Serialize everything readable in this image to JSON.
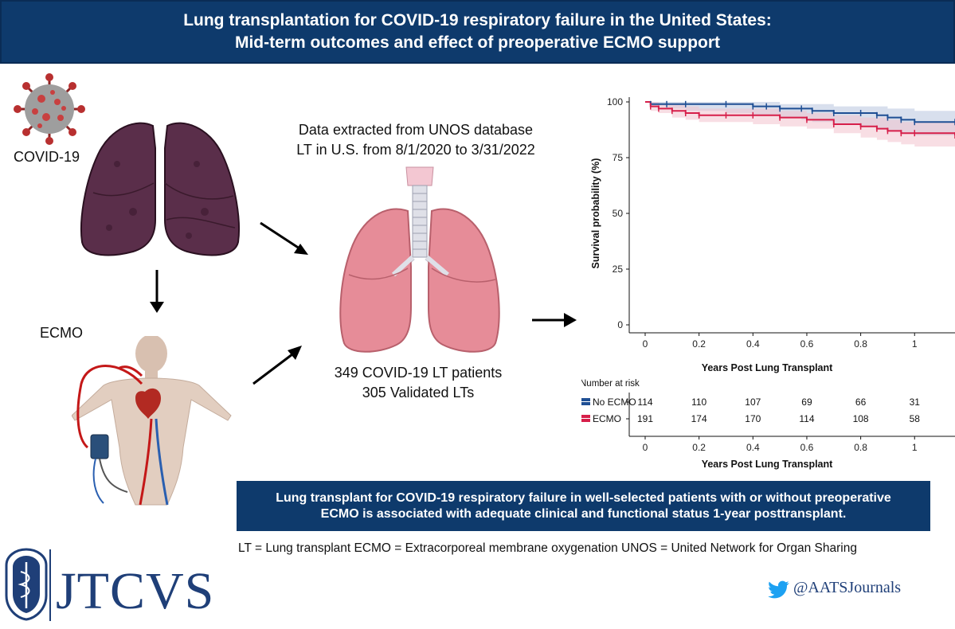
{
  "title": {
    "line1": "Lung transplantation for COVID-19 respiratory failure in the United States:",
    "line2": "Mid-term outcomes and effect of preoperative ECMO support"
  },
  "labels": {
    "covid": "COVID-19",
    "ecmo": "ECMO"
  },
  "data_source": {
    "line1": "Data extracted from UNOS database",
    "line2": "LT in U.S. from 8/1/2020 to 3/31/2022"
  },
  "patients": {
    "line1": "349 COVID-19 LT patients",
    "line2": "305 Validated LTs"
  },
  "conclusion": {
    "line1": "Lung transplant for COVID-19 respiratory failure in well-selected patients with or without preoperative",
    "line2": "ECMO is associated with adequate clinical and functional status 1-year posttransplant."
  },
  "abbreviations": "LT = Lung transplant ECMO = Extracorporeal membrane oxygenation UNOS = United Network for Organ Sharing",
  "brand": {
    "journal": "JTCVS",
    "twitter": "@AATSJournals"
  },
  "colors": {
    "banner": "#0e3a6c",
    "no_ecmo": "#1f4f94",
    "ecmo": "#d61f4a"
  },
  "chart_data": {
    "type": "line",
    "subtype": "kaplan-meier",
    "title": "",
    "xlabel": "Years Post Lung Transplant",
    "ylabel": "Survival probability (%)",
    "xlim": [
      0,
      1.15
    ],
    "ylim": [
      0,
      100
    ],
    "x_ticks": [
      "0",
      "0.2",
      "0.4",
      "0.6",
      "0.8",
      "1"
    ],
    "y_ticks": [
      "0",
      "25",
      "50",
      "75",
      "100"
    ],
    "series": [
      {
        "name": "No ECMO",
        "x": [
          0,
          0.02,
          0.08,
          0.15,
          0.3,
          0.4,
          0.45,
          0.5,
          0.58,
          0.62,
          0.7,
          0.8,
          0.86,
          0.9,
          0.95,
          1.0,
          1.15
        ],
        "y": [
          100,
          99,
          99,
          99,
          99,
          98,
          98,
          97,
          97,
          96,
          95,
          95,
          94,
          93,
          92,
          91,
          91
        ],
        "ci_upper": [
          100,
          100,
          100,
          100,
          100,
          100,
          100,
          99,
          99,
          99,
          98,
          98,
          98,
          97,
          97,
          96,
          96
        ],
        "ci_lower": [
          100,
          98,
          97,
          96,
          95,
          94,
          94,
          93,
          92,
          91,
          90,
          89,
          88,
          87,
          86,
          85,
          85
        ]
      },
      {
        "name": "ECMO",
        "x": [
          0,
          0.02,
          0.05,
          0.1,
          0.15,
          0.2,
          0.3,
          0.4,
          0.5,
          0.6,
          0.7,
          0.8,
          0.86,
          0.9,
          0.95,
          1.0,
          1.15
        ],
        "y": [
          100,
          98,
          97,
          96,
          95,
          94,
          94,
          94,
          93,
          92,
          90,
          89,
          88,
          87,
          86,
          86,
          85
        ],
        "ci_upper": [
          100,
          100,
          99,
          99,
          98,
          97,
          97,
          97,
          96,
          95,
          94,
          93,
          93,
          92,
          91,
          91,
          90
        ],
        "ci_lower": [
          100,
          96,
          95,
          93,
          92,
          91,
          91,
          90,
          89,
          88,
          86,
          84,
          83,
          82,
          81,
          80,
          79
        ]
      }
    ],
    "risk_table": {
      "title": "Number at risk",
      "times": [
        0,
        0.2,
        0.4,
        0.6,
        0.8,
        1
      ],
      "rows": [
        {
          "name": "No ECMO",
          "values": [
            "114",
            "110",
            "107",
            "69",
            "66",
            "31"
          ]
        },
        {
          "name": "ECMO",
          "values": [
            "191",
            "174",
            "170",
            "114",
            "108",
            "58"
          ]
        }
      ]
    }
  }
}
